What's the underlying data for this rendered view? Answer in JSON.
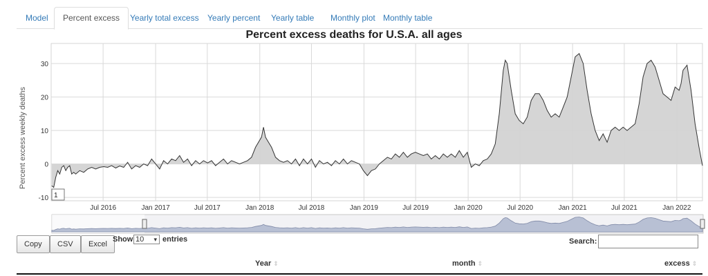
{
  "tabs": [
    {
      "label": "Model",
      "active": false
    },
    {
      "label": "Percent excess",
      "active": true
    },
    {
      "label": "Yearly total excess",
      "active": false
    },
    {
      "label": "Yearly percent",
      "active": false
    },
    {
      "label": "Yearly table",
      "active": false
    },
    {
      "label": "Monthly plot",
      "active": false
    },
    {
      "label": "Monthly table",
      "active": false
    }
  ],
  "tooltip_value": "1",
  "chart_data": {
    "type": "area",
    "title": "Percent excess deaths for U.S.A. all ages",
    "ylabel": "Percent excess weekly deaths",
    "xlabel": "",
    "ylim": [
      -11,
      36
    ],
    "xlim": [
      "2016-01-01",
      "2022-04-01"
    ],
    "grid": true,
    "yticks": [
      -10,
      0,
      10,
      20,
      30
    ],
    "xticks": [
      {
        "label": "Jul 2016",
        "date": "2016-07-01"
      },
      {
        "label": "Jan 2017",
        "date": "2017-01-01"
      },
      {
        "label": "Jul 2017",
        "date": "2017-07-01"
      },
      {
        "label": "Jan 2018",
        "date": "2018-01-01"
      },
      {
        "label": "Jul 2018",
        "date": "2018-07-01"
      },
      {
        "label": "Jan 2019",
        "date": "2019-01-01"
      },
      {
        "label": "Jul 2019",
        "date": "2019-07-01"
      },
      {
        "label": "Jan 2020",
        "date": "2020-01-01"
      },
      {
        "label": "Jul 2020",
        "date": "2020-07-01"
      },
      {
        "label": "Jan 2021",
        "date": "2021-01-01"
      },
      {
        "label": "Jul 2021",
        "date": "2021-07-01"
      },
      {
        "label": "Jan 2022",
        "date": "2022-01-01"
      }
    ],
    "series": [
      {
        "fill": "#d3d3d3",
        "line": "#333333",
        "points": [
          [
            "2016-01-03",
            -6.5
          ],
          [
            "2016-01-10",
            -7
          ],
          [
            "2016-01-17",
            -4
          ],
          [
            "2016-01-24",
            -2
          ],
          [
            "2016-01-31",
            -3
          ],
          [
            "2016-02-07",
            -1
          ],
          [
            "2016-02-14",
            -0.5
          ],
          [
            "2016-02-21",
            -2
          ],
          [
            "2016-02-28",
            -1
          ],
          [
            "2016-03-06",
            -0.5
          ],
          [
            "2016-03-13",
            -3
          ],
          [
            "2016-03-20",
            -2.5
          ],
          [
            "2016-03-27",
            -3
          ],
          [
            "2016-04-10",
            -2
          ],
          [
            "2016-04-24",
            -2.5
          ],
          [
            "2016-05-08",
            -1.5
          ],
          [
            "2016-05-22",
            -1
          ],
          [
            "2016-06-05",
            -1.5
          ],
          [
            "2016-06-19",
            -1
          ],
          [
            "2016-07-03",
            -0.8
          ],
          [
            "2016-07-17",
            -1
          ],
          [
            "2016-07-31",
            -0.5
          ],
          [
            "2016-08-14",
            -1.2
          ],
          [
            "2016-08-28",
            -0.6
          ],
          [
            "2016-09-11",
            -1
          ],
          [
            "2016-09-25",
            0.5
          ],
          [
            "2016-10-09",
            -1.5
          ],
          [
            "2016-10-23",
            -0.5
          ],
          [
            "2016-11-06",
            -1
          ],
          [
            "2016-11-20",
            0
          ],
          [
            "2016-12-04",
            -0.5
          ],
          [
            "2016-12-18",
            1.5
          ],
          [
            "2017-01-01",
            0
          ],
          [
            "2017-01-15",
            -1.5
          ],
          [
            "2017-01-29",
            1
          ],
          [
            "2017-02-12",
            0
          ],
          [
            "2017-02-26",
            1.5
          ],
          [
            "2017-03-12",
            1
          ],
          [
            "2017-03-26",
            2.5
          ],
          [
            "2017-04-09",
            0.5
          ],
          [
            "2017-04-23",
            1.5
          ],
          [
            "2017-05-07",
            -0.5
          ],
          [
            "2017-05-21",
            1
          ],
          [
            "2017-06-04",
            0
          ],
          [
            "2017-06-18",
            1
          ],
          [
            "2017-07-02",
            0.3
          ],
          [
            "2017-07-16",
            1
          ],
          [
            "2017-07-30",
            -0.5
          ],
          [
            "2017-08-13",
            0.5
          ],
          [
            "2017-08-27",
            1.5
          ],
          [
            "2017-09-10",
            0
          ],
          [
            "2017-09-24",
            1
          ],
          [
            "2017-10-08",
            0.5
          ],
          [
            "2017-10-22",
            0
          ],
          [
            "2017-11-05",
            0.5
          ],
          [
            "2017-11-19",
            1
          ],
          [
            "2017-12-03",
            2
          ],
          [
            "2017-12-17",
            5
          ],
          [
            "2018-01-07",
            8
          ],
          [
            "2018-01-14",
            11
          ],
          [
            "2018-01-21",
            8
          ],
          [
            "2018-01-28",
            7
          ],
          [
            "2018-02-11",
            5
          ],
          [
            "2018-02-25",
            2
          ],
          [
            "2018-03-11",
            1
          ],
          [
            "2018-03-25",
            0.5
          ],
          [
            "2018-04-08",
            1
          ],
          [
            "2018-04-22",
            0
          ],
          [
            "2018-05-06",
            1.5
          ],
          [
            "2018-05-20",
            -0.5
          ],
          [
            "2018-06-03",
            1.5
          ],
          [
            "2018-06-17",
            0
          ],
          [
            "2018-07-01",
            1.5
          ],
          [
            "2018-07-15",
            -1
          ],
          [
            "2018-07-29",
            1
          ],
          [
            "2018-08-12",
            0
          ],
          [
            "2018-08-26",
            0.5
          ],
          [
            "2018-09-09",
            -0.5
          ],
          [
            "2018-09-23",
            1
          ],
          [
            "2018-10-07",
            0
          ],
          [
            "2018-10-21",
            1.5
          ],
          [
            "2018-11-04",
            0
          ],
          [
            "2018-11-18",
            1
          ],
          [
            "2018-12-02",
            0.5
          ],
          [
            "2018-12-16",
            0
          ],
          [
            "2018-12-30",
            -2
          ],
          [
            "2019-01-13",
            -3.5
          ],
          [
            "2019-01-27",
            -2
          ],
          [
            "2019-02-10",
            -1.5
          ],
          [
            "2019-02-24",
            0
          ],
          [
            "2019-03-10",
            1
          ],
          [
            "2019-03-24",
            2
          ],
          [
            "2019-04-07",
            1.5
          ],
          [
            "2019-04-21",
            3
          ],
          [
            "2019-05-05",
            2
          ],
          [
            "2019-05-19",
            3.5
          ],
          [
            "2019-06-02",
            2
          ],
          [
            "2019-06-16",
            3
          ],
          [
            "2019-06-30",
            3.5
          ],
          [
            "2019-07-14",
            3
          ],
          [
            "2019-07-28",
            2.5
          ],
          [
            "2019-08-11",
            3
          ],
          [
            "2019-08-25",
            1.5
          ],
          [
            "2019-09-08",
            2.5
          ],
          [
            "2019-09-22",
            1.5
          ],
          [
            "2019-10-06",
            3
          ],
          [
            "2019-10-20",
            2
          ],
          [
            "2019-11-03",
            3
          ],
          [
            "2019-11-17",
            2
          ],
          [
            "2019-12-01",
            4
          ],
          [
            "2019-12-15",
            2
          ],
          [
            "2019-12-29",
            3.5
          ],
          [
            "2020-01-12",
            -1
          ],
          [
            "2020-01-26",
            0
          ],
          [
            "2020-02-09",
            -0.5
          ],
          [
            "2020-02-23",
            1
          ],
          [
            "2020-03-08",
            1.5
          ],
          [
            "2020-03-22",
            3
          ],
          [
            "2020-04-05",
            6
          ],
          [
            "2020-04-19",
            15
          ],
          [
            "2020-05-03",
            28
          ],
          [
            "2020-05-10",
            31
          ],
          [
            "2020-05-17",
            30
          ],
          [
            "2020-05-31",
            22
          ],
          [
            "2020-06-14",
            15
          ],
          [
            "2020-06-28",
            13
          ],
          [
            "2020-07-12",
            12
          ],
          [
            "2020-07-26",
            14
          ],
          [
            "2020-08-09",
            19
          ],
          [
            "2020-08-23",
            21
          ],
          [
            "2020-09-06",
            21
          ],
          [
            "2020-09-20",
            19
          ],
          [
            "2020-10-04",
            16
          ],
          [
            "2020-10-18",
            14
          ],
          [
            "2020-11-01",
            15
          ],
          [
            "2020-11-15",
            14
          ],
          [
            "2020-11-29",
            17
          ],
          [
            "2020-12-13",
            20
          ],
          [
            "2020-12-27",
            26
          ],
          [
            "2021-01-10",
            32
          ],
          [
            "2021-01-24",
            33
          ],
          [
            "2021-02-07",
            30
          ],
          [
            "2021-02-21",
            22
          ],
          [
            "2021-03-07",
            15
          ],
          [
            "2021-03-21",
            10
          ],
          [
            "2021-04-04",
            7
          ],
          [
            "2021-04-18",
            9
          ],
          [
            "2021-05-02",
            6.5
          ],
          [
            "2021-05-16",
            10
          ],
          [
            "2021-05-30",
            11
          ],
          [
            "2021-06-13",
            10
          ],
          [
            "2021-06-27",
            11
          ],
          [
            "2021-07-11",
            10
          ],
          [
            "2021-07-25",
            11
          ],
          [
            "2021-08-08",
            12
          ],
          [
            "2021-08-22",
            18
          ],
          [
            "2021-09-05",
            26
          ],
          [
            "2021-09-19",
            30
          ],
          [
            "2021-10-03",
            31
          ],
          [
            "2021-10-17",
            29
          ],
          [
            "2021-10-31",
            25
          ],
          [
            "2021-11-14",
            21
          ],
          [
            "2021-11-28",
            20
          ],
          [
            "2021-12-12",
            19
          ],
          [
            "2021-12-26",
            23
          ],
          [
            "2022-01-09",
            22
          ],
          [
            "2022-01-16",
            24
          ],
          [
            "2022-01-23",
            28
          ],
          [
            "2022-02-06",
            29.5
          ],
          [
            "2022-02-20",
            22
          ],
          [
            "2022-03-06",
            12
          ],
          [
            "2022-03-20",
            5
          ],
          [
            "2022-04-01",
            -0.5
          ]
        ]
      }
    ]
  },
  "buttons": {
    "copy": "Copy",
    "csv": "CSV",
    "excel": "Excel"
  },
  "length_menu": {
    "show": "Show",
    "value": "10",
    "entries": "entries"
  },
  "search": {
    "label": "Search:",
    "value": ""
  },
  "table": {
    "headers": [
      "Year",
      "month",
      "excess"
    ]
  }
}
